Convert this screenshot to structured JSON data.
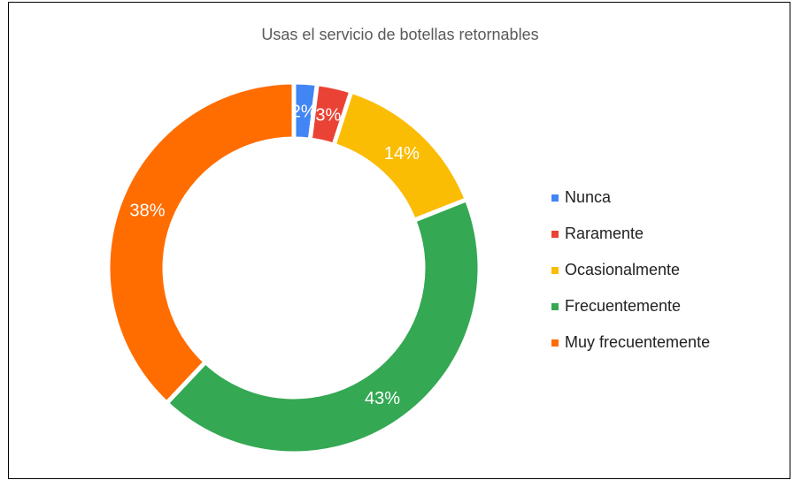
{
  "chart_data": {
    "type": "pie",
    "title": "Usas el servicio de botellas retornables",
    "donut": true,
    "legend_position": "right",
    "slices": [
      {
        "label": "Nunca",
        "value": 2,
        "value_label": "2%",
        "color": "#4285f4"
      },
      {
        "label": "Raramente",
        "value": 3,
        "value_label": "3%",
        "color": "#ea4335"
      },
      {
        "label": "Ocasionalmente",
        "value": 14,
        "value_label": "14%",
        "color": "#fbbc04"
      },
      {
        "label": "Frecuentemente",
        "value": 43,
        "value_label": "43%",
        "color": "#34a853"
      },
      {
        "label": "Muy frecuentemente",
        "value": 38,
        "value_label": "38%",
        "color": "#ff6d01"
      }
    ]
  }
}
